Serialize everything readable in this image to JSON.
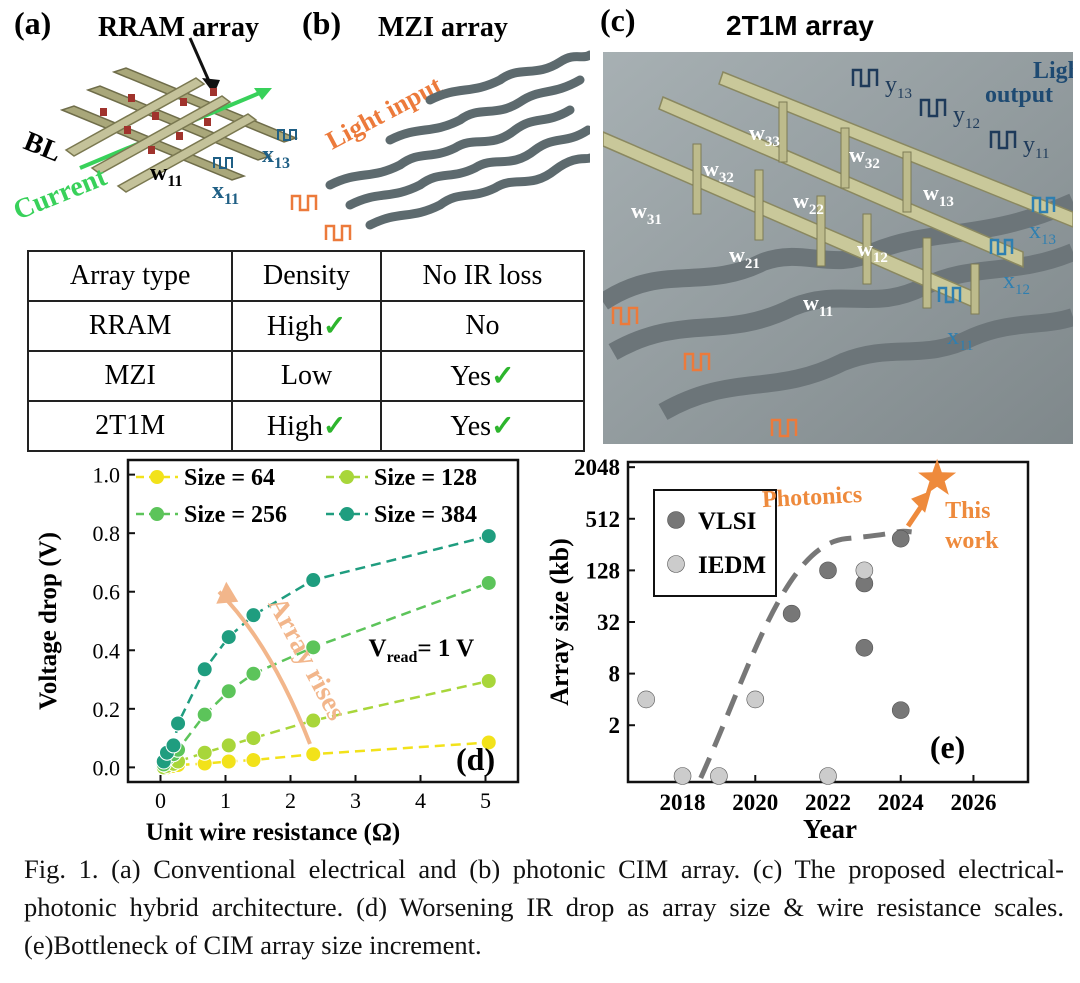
{
  "panel_a": {
    "label": "(a)",
    "title": "RRAM array",
    "bl": "BL",
    "current": "Current",
    "w": "w",
    "w_sub": "11",
    "x1": "x",
    "x1_sub": "11",
    "x2": "x",
    "x2_sub": "13"
  },
  "panel_b": {
    "label": "(b)",
    "title": "MZI array",
    "light_input": "Light input"
  },
  "panel_c": {
    "label": "(c)",
    "title": "2T1M array",
    "light_output_1": "Light",
    "light_output_2": "output",
    "weights": [
      {
        "s": "w",
        "sub": "33"
      },
      {
        "s": "w",
        "sub": "32"
      },
      {
        "s": "w",
        "sub": "32"
      },
      {
        "s": "w",
        "sub": "31"
      },
      {
        "s": "w",
        "sub": "22"
      },
      {
        "s": "w",
        "sub": "13"
      },
      {
        "s": "w",
        "sub": "21"
      },
      {
        "s": "w",
        "sub": "12"
      },
      {
        "s": "w",
        "sub": "11"
      }
    ],
    "outputs": [
      {
        "s": "y",
        "sub": "13"
      },
      {
        "s": "y",
        "sub": "12"
      },
      {
        "s": "y",
        "sub": "11"
      }
    ],
    "inputs": [
      {
        "s": "x",
        "sub": "13"
      },
      {
        "s": "x",
        "sub": "12"
      },
      {
        "s": "x",
        "sub": "11"
      }
    ]
  },
  "table": {
    "headers": [
      "Array type",
      "Density",
      "No IR loss"
    ],
    "rows": [
      {
        "type": "RRAM",
        "density": "High",
        "density_check": "✓",
        "ir": "No",
        "ir_check": ""
      },
      {
        "type": "MZI",
        "density": "Low",
        "density_check": "",
        "ir": "Yes",
        "ir_check": "✓"
      },
      {
        "type": "2T1M",
        "density": "High",
        "density_check": "✓",
        "ir": "Yes",
        "ir_check": "✓"
      }
    ]
  },
  "chart_data": [
    {
      "type": "line",
      "panel": "(d)",
      "xlabel": "Unit wire resistance (Ω)",
      "ylabel": "Voltage drop (V)",
      "xlim": [
        -0.5,
        5.5
      ],
      "ylim": [
        -0.05,
        1.05
      ],
      "xticks": [
        "0",
        "1",
        "2",
        "3",
        "4",
        "5"
      ],
      "yticks": [
        "0.0",
        "0.2",
        "0.4",
        "0.6",
        "0.8",
        "1.0"
      ],
      "annotation": "Array rises",
      "vread": "V",
      "vread_sub": "read",
      "vread_rest": "= 1 V",
      "series": [
        {
          "name": "Size = 64",
          "color": "#f2e21a",
          "x": [
            0.05,
            0.1,
            0.2,
            0.27,
            0.68,
            1.05,
            1.43,
            2.35,
            5.05
          ],
          "y": [
            0.0,
            0.0,
            0.005,
            0.008,
            0.013,
            0.02,
            0.025,
            0.045,
            0.085
          ]
        },
        {
          "name": "Size = 128",
          "color": "#a8d63a",
          "x": [
            0.05,
            0.1,
            0.2,
            0.27,
            0.68,
            1.05,
            1.43,
            2.35,
            5.05
          ],
          "y": [
            0.0,
            0.005,
            0.012,
            0.02,
            0.05,
            0.075,
            0.1,
            0.16,
            0.295
          ]
        },
        {
          "name": "Size = 256",
          "color": "#5cc45a",
          "x": [
            0.05,
            0.1,
            0.2,
            0.27,
            0.68,
            1.05,
            1.43,
            2.35,
            5.05
          ],
          "y": [
            0.01,
            0.03,
            0.045,
            0.06,
            0.18,
            0.26,
            0.32,
            0.41,
            0.63
          ]
        },
        {
          "name": "Size = 384",
          "color": "#1f9d7f",
          "x": [
            0.05,
            0.1,
            0.2,
            0.27,
            0.68,
            1.05,
            1.43,
            2.35,
            5.05
          ],
          "y": [
            0.02,
            0.05,
            0.075,
            0.15,
            0.335,
            0.445,
            0.52,
            0.64,
            0.79
          ]
        }
      ]
    },
    {
      "type": "scatter",
      "panel": "(e)",
      "xlabel": "Year",
      "ylabel": "Array size (kb)",
      "xlim": [
        2016.5,
        2027.5
      ],
      "yscale": "log2",
      "ylim_log2": [
        -1.2,
        11.2
      ],
      "xticks": [
        "2018",
        "2020",
        "2022",
        "2024",
        "2026"
      ],
      "yticks": [
        "2",
        "8",
        "32",
        "128",
        "512",
        "2048"
      ],
      "series": [
        {
          "name": "VLSI",
          "color": "#777777",
          "x": [
            2021,
            2022,
            2023,
            2023,
            2024,
            2024
          ],
          "y": [
            40,
            128,
            90,
            16,
            300,
            3
          ]
        },
        {
          "name": "IEDM",
          "color": "#cccccc",
          "x": [
            2017,
            2018,
            2019,
            2020,
            2022,
            2023
          ],
          "y": [
            4,
            0.5,
            0.5,
            4,
            0.5,
            128
          ]
        }
      ],
      "this_work": {
        "x": 2025,
        "y": 1500,
        "label1": "This",
        "label2": "work",
        "photonics": "Photonics"
      }
    }
  ],
  "caption": "Fig. 1. (a) Conventional electrical and (b) photonic CIM array. (c) The proposed electrical-photonic hybrid architecture. (d) Worsening IR drop as array size & wire resistance scales. (e)Bottleneck of CIM array size increment."
}
